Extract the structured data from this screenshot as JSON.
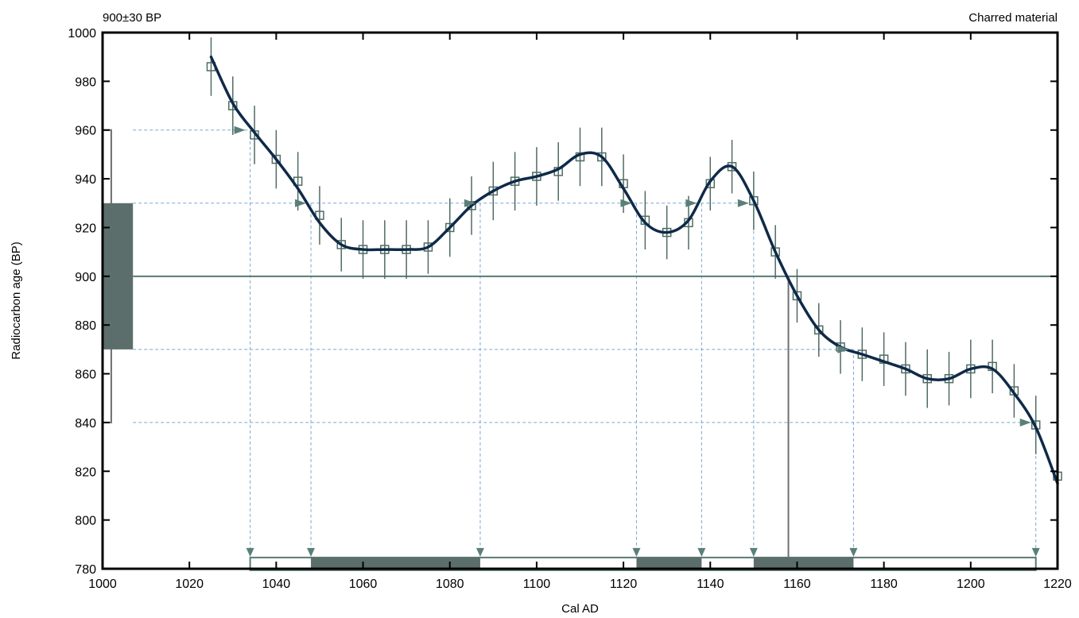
{
  "chart_data": {
    "type": "line",
    "title_left": "900±30 BP",
    "title_right": "Charred material",
    "xlabel": "Cal AD",
    "ylabel": "Radiocarbon age (BP)",
    "xlim": [
      1000,
      1220
    ],
    "ylim": [
      780,
      1000
    ],
    "x_ticks": [
      1000,
      1020,
      1040,
      1060,
      1080,
      1100,
      1120,
      1140,
      1160,
      1180,
      1200,
      1220
    ],
    "y_ticks": [
      780,
      800,
      820,
      840,
      860,
      880,
      900,
      920,
      940,
      960,
      980,
      1000
    ],
    "grid": false,
    "calibration_curve": {
      "x": [
        1025,
        1030,
        1035,
        1040,
        1045,
        1050,
        1055,
        1060,
        1065,
        1070,
        1075,
        1080,
        1085,
        1090,
        1095,
        1100,
        1105,
        1110,
        1115,
        1120,
        1125,
        1130,
        1135,
        1140,
        1145,
        1150,
        1155,
        1160,
        1165,
        1170,
        1175,
        1180,
        1185,
        1190,
        1195,
        1200,
        1205,
        1210,
        1215,
        1220
      ],
      "y": [
        990,
        971,
        959,
        948,
        936,
        922,
        913,
        911,
        911,
        911,
        912,
        920,
        929,
        935,
        939,
        941,
        944,
        950,
        949,
        936,
        922,
        918,
        923,
        939,
        945,
        931,
        910,
        892,
        878,
        871,
        868,
        865,
        862,
        858,
        858,
        862,
        862,
        852,
        838,
        815
      ]
    },
    "decadal_data": {
      "x": [
        1025,
        1030,
        1035,
        1040,
        1045,
        1050,
        1055,
        1060,
        1065,
        1070,
        1075,
        1080,
        1085,
        1090,
        1095,
        1100,
        1105,
        1110,
        1115,
        1120,
        1125,
        1130,
        1135,
        1140,
        1145,
        1150,
        1155,
        1160,
        1165,
        1170,
        1175,
        1180,
        1185,
        1190,
        1195,
        1200,
        1205,
        1210,
        1215,
        1220
      ],
      "y": [
        986,
        970,
        958,
        948,
        939,
        925,
        913,
        911,
        911,
        911,
        912,
        920,
        929,
        935,
        939,
        941,
        943,
        949,
        949,
        938,
        923,
        918,
        922,
        938,
        945,
        931,
        910,
        892,
        878,
        871,
        868,
        866,
        862,
        858,
        858,
        862,
        863,
        853,
        839,
        818
      ],
      "error": [
        12,
        12,
        12,
        12,
        12,
        12,
        11,
        12,
        12,
        12,
        11,
        12,
        12,
        12,
        12,
        12,
        12,
        12,
        12,
        12,
        12,
        11,
        11,
        11,
        11,
        12,
        11,
        11,
        11,
        11,
        11,
        11,
        11,
        12,
        11,
        12,
        11,
        11,
        12,
        12
      ]
    },
    "measurement": {
      "age": 900,
      "one_sigma": [
        870,
        930
      ],
      "two_sigma": [
        840,
        960
      ]
    },
    "intercept_x": 1158,
    "one_sigma_ranges": [
      [
        1048,
        1087
      ],
      [
        1123,
        1138
      ],
      [
        1150,
        1173
      ]
    ],
    "two_sigma_range": [
      1034,
      1215
    ],
    "colors": {
      "curve": "#0e2a48",
      "data": "#4f6b66",
      "band": "#5c6e6b",
      "line": "#587a74",
      "guide": "#7aa8d4",
      "arrow": "#5a7f79",
      "axis": "#000000"
    }
  }
}
